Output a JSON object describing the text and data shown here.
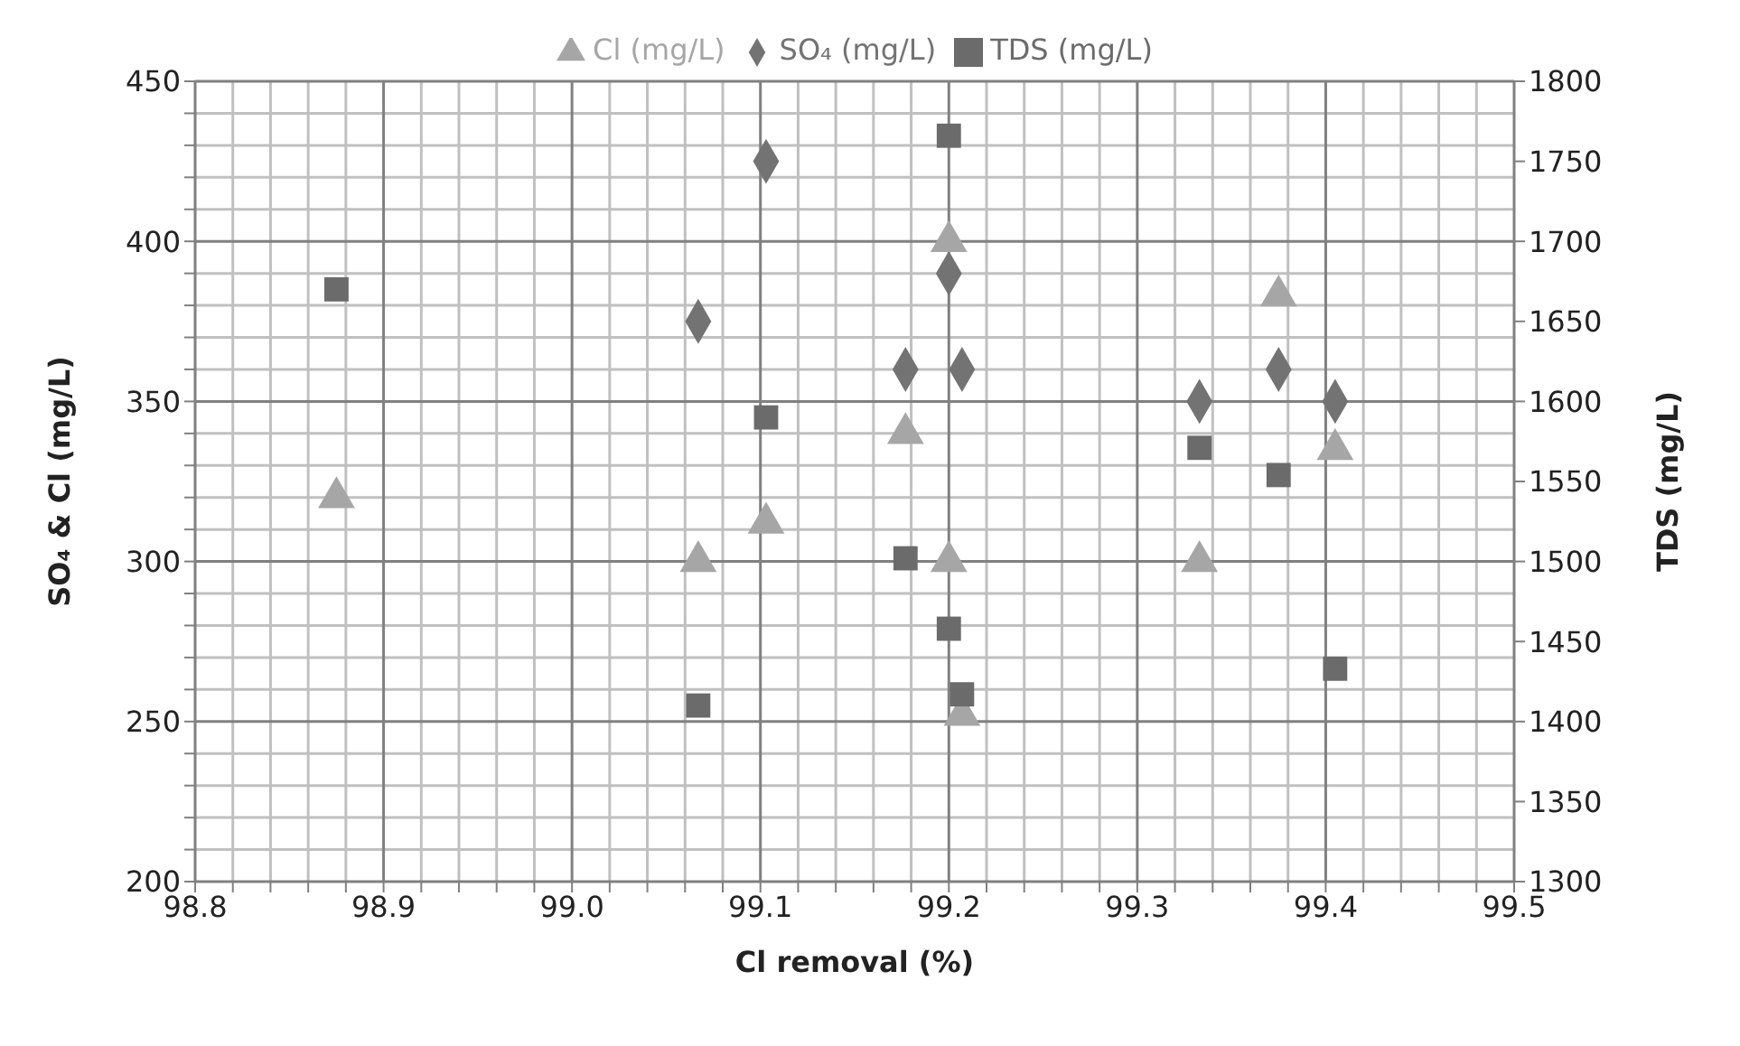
{
  "chart_data": {
    "type": "scatter",
    "xlabel": "Cl removal (%)",
    "ylabel": "SO₄ & Cl (mg/L)",
    "y2label": "TDS (mg/L)",
    "series": [
      {
        "name": "SO₄ (mg/L)",
        "color": "#737373",
        "marker": "diamond",
        "x": [
          99.067,
          99.103,
          99.177,
          99.2,
          99.207,
          99.333,
          99.375,
          99.405
        ],
        "values": [
          375,
          425,
          360,
          390,
          360,
          350,
          360,
          350
        ]
      },
      {
        "name": "Cl (mg/L)",
        "color": "#a6a6a6",
        "marker": "triangle",
        "x": [
          98.875,
          99.067,
          99.103,
          99.177,
          99.2,
          99.2,
          99.207,
          99.333,
          99.375,
          99.405
        ],
        "values": [
          320,
          300,
          312,
          340,
          300,
          400,
          252,
          300,
          383,
          335
        ]
      },
      {
        "name": "TDS (mg/L)",
        "color": "#6b6b6b",
        "marker": "square",
        "axis": "y2",
        "x": [
          98.875,
          99.067,
          99.103,
          99.177,
          99.2,
          99.2,
          99.207,
          99.333,
          99.375,
          99.405
        ],
        "values": [
          1670,
          1410,
          1590,
          1502,
          1766,
          1458,
          1417,
          1571,
          1554,
          1433
        ]
      }
    ],
    "xlim": [
      98.8,
      99.5
    ],
    "xticks": [
      {
        "value": 98.8,
        "label": "98.8"
      },
      {
        "value": 98.82,
        "label": null
      },
      {
        "value": 98.84,
        "label": null
      },
      {
        "value": 98.86,
        "label": null
      },
      {
        "value": 98.88,
        "label": null
      },
      {
        "value": 98.9,
        "label": "98.9"
      },
      {
        "value": 98.92,
        "label": null
      },
      {
        "value": 98.94,
        "label": null
      },
      {
        "value": 98.96,
        "label": null
      },
      {
        "value": 98.98,
        "label": null
      },
      {
        "value": 99,
        "label": "99.0"
      },
      {
        "value": 99.02,
        "label": null
      },
      {
        "value": 99.04,
        "label": null
      },
      {
        "value": 99.06,
        "label": null
      },
      {
        "value": 99.08,
        "label": null
      },
      {
        "value": 99.1,
        "label": "99.1"
      },
      {
        "value": 99.12,
        "label": null
      },
      {
        "value": 99.14,
        "label": null
      },
      {
        "value": 99.16,
        "label": null
      },
      {
        "value": 99.18,
        "label": null
      },
      {
        "value": 99.2,
        "label": "99.2"
      },
      {
        "value": 99.22,
        "label": null
      },
      {
        "value": 99.24,
        "label": null
      },
      {
        "value": 99.26,
        "label": null
      },
      {
        "value": 99.28,
        "label": null
      },
      {
        "value": 99.3,
        "label": "99.3"
      },
      {
        "value": 99.32,
        "label": null
      },
      {
        "value": 99.34,
        "label": null
      },
      {
        "value": 99.36,
        "label": null
      },
      {
        "value": 99.38,
        "label": null
      },
      {
        "value": 99.4,
        "label": "99.4"
      },
      {
        "value": 99.42,
        "label": null
      },
      {
        "value": 99.44,
        "label": null
      },
      {
        "value": 99.46,
        "label": null
      },
      {
        "value": 99.48,
        "label": null
      },
      {
        "value": 99.5,
        "label": "99.5"
      }
    ],
    "ylim": [
      200,
      450
    ],
    "yticks": [
      200,
      {
        "value": 210,
        "label": null
      },
      {
        "value": 220,
        "label": null
      },
      {
        "value": 230,
        "label": null
      },
      {
        "value": 240,
        "label": null
      },
      250,
      {
        "value": 260,
        "label": null
      },
      {
        "value": 270,
        "label": null
      },
      {
        "value": 280,
        "label": null
      },
      {
        "value": 290,
        "label": null
      },
      300,
      {
        "value": 310,
        "label": null
      },
      {
        "value": 320,
        "label": null
      },
      {
        "value": 330,
        "label": null
      },
      {
        "value": 340,
        "label": null
      },
      350,
      {
        "value": 360,
        "label": null
      },
      {
        "value": 370,
        "label": null
      },
      {
        "value": 380,
        "label": null
      },
      {
        "value": 390,
        "label": null
      },
      400,
      {
        "value": 410,
        "label": null
      },
      {
        "value": 420,
        "label": null
      },
      {
        "value": 430,
        "label": null
      },
      {
        "value": 440,
        "label": null
      },
      450
    ],
    "y2lim": [
      1300,
      1800
    ],
    "y2ticks": [
      1300,
      1350,
      1400,
      1450,
      1500,
      1550,
      1600,
      1650,
      1700,
      1750,
      1800
    ],
    "grid": true,
    "legend": "top"
  }
}
